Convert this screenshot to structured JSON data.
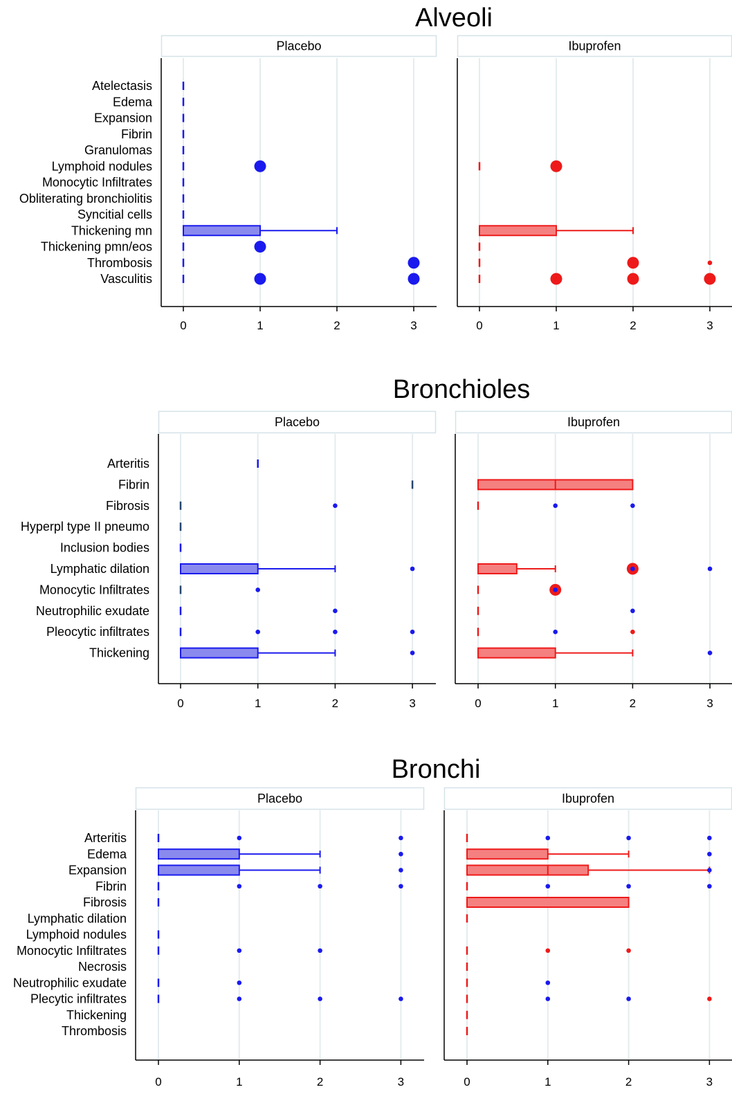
{
  "colors": {
    "placebo": "#1a1aee",
    "placebo_fill": "#8a8aee",
    "ibuprofen": "#ee1a1a",
    "ibuprofen_fill": "#f58080",
    "grid": "#e4ecee",
    "strip_border": "#d5e2e8"
  },
  "chart_data": [
    {
      "type": "box",
      "title": "Alveoli",
      "xticks": [
        0,
        1,
        2,
        3
      ],
      "categories": [
        "Atelectasis",
        "Edema",
        "Expansion",
        "Fibrin",
        "Granulomas",
        "Lymphoid nodules",
        "Monocytic Infiltrates",
        "Obliterating bronchiolitis",
        "Syncitial cells",
        "Thickening mn",
        "Thickening pmn/eos",
        "Thrombosis",
        "Vasculitis"
      ],
      "panels": [
        {
          "name": "Placebo",
          "group": "placebo",
          "boxes": [
            {
              "category": "Atelectasis",
              "median": 0
            },
            {
              "category": "Edema",
              "median": 0
            },
            {
              "category": "Expansion",
              "median": 0
            },
            {
              "category": "Fibrin",
              "median": 0
            },
            {
              "category": "Granulomas",
              "median": 0
            },
            {
              "category": "Lymphoid nodules",
              "median": 0
            },
            {
              "category": "Monocytic Infiltrates",
              "median": 0
            },
            {
              "category": "Obliterating bronchiolitis",
              "median": 0
            },
            {
              "category": "Syncitial cells",
              "median": 0
            },
            {
              "category": "Thickening mn",
              "q1": 0,
              "median": 0,
              "q3": 1,
              "whisker_high": 2
            },
            {
              "category": "Thickening pmn/eos",
              "median": 0
            },
            {
              "category": "Thrombosis",
              "median": 0
            },
            {
              "category": "Vasculitis",
              "median": 0
            }
          ],
          "outliers": [
            {
              "category": "Lymphoid nodules",
              "x": 1,
              "size": "large"
            },
            {
              "category": "Thickening pmn/eos",
              "x": 1,
              "size": "large"
            },
            {
              "category": "Thrombosis",
              "x": 3,
              "size": "large"
            },
            {
              "category": "Vasculitis",
              "x": 1,
              "size": "large"
            },
            {
              "category": "Vasculitis",
              "x": 3,
              "size": "large"
            }
          ]
        },
        {
          "name": "Ibuprofen",
          "group": "ibuprofen",
          "boxes": [
            {
              "category": "Lymphoid nodules",
              "median": 0
            },
            {
              "category": "Thickening mn",
              "q1": 0,
              "median": 0,
              "q3": 1,
              "whisker_high": 2
            },
            {
              "category": "Thickening pmn/eos",
              "median": 0
            },
            {
              "category": "Thrombosis",
              "median": 0
            },
            {
              "category": "Vasculitis",
              "median": 0
            }
          ],
          "outliers": [
            {
              "category": "Lymphoid nodules",
              "x": 1,
              "size": "large"
            },
            {
              "category": "Thrombosis",
              "x": 2,
              "size": "large"
            },
            {
              "category": "Thrombosis",
              "x": 3,
              "size": "small"
            },
            {
              "category": "Vasculitis",
              "x": 1,
              "size": "large"
            },
            {
              "category": "Vasculitis",
              "x": 2,
              "size": "large"
            },
            {
              "category": "Vasculitis",
              "x": 3,
              "size": "large"
            }
          ]
        }
      ]
    },
    {
      "type": "box",
      "title": "Bronchioles",
      "xticks": [
        0,
        1,
        2,
        3
      ],
      "categories": [
        "Arteritis",
        "Fibrin",
        "Fibrosis",
        "Hyperpl type II pneumo",
        "Inclusion bodies",
        "Lymphatic dilation",
        "Monocytic Infiltrates",
        "Neutrophilic exudate",
        "Pleocytic infiltrates",
        "Thickening"
      ],
      "panels": [
        {
          "name": "Placebo",
          "group": "placebo",
          "boxes": [
            {
              "category": "Arteritis",
              "median": 1
            },
            {
              "category": "Fibrin",
              "median": 3,
              "color": "#24456e"
            },
            {
              "category": "Fibrosis",
              "median": 0,
              "color": "#24456e"
            },
            {
              "category": "Hyperpl type II pneumo",
              "median": 0,
              "color": "#24456e"
            },
            {
              "category": "Inclusion bodies",
              "median": 0
            },
            {
              "category": "Lymphatic dilation",
              "q1": 0,
              "median": 0,
              "q3": 1,
              "whisker_high": 2
            },
            {
              "category": "Monocytic Infiltrates",
              "median": 0,
              "color": "#24456e"
            },
            {
              "category": "Neutrophilic exudate",
              "median": 0
            },
            {
              "category": "Pleocytic infiltrates",
              "median": 0
            },
            {
              "category": "Thickening",
              "q1": 0,
              "median": 0,
              "q3": 1,
              "whisker_high": 2
            }
          ],
          "outliers": [
            {
              "category": "Fibrosis",
              "x": 2,
              "size": "small"
            },
            {
              "category": "Lymphatic dilation",
              "x": 3,
              "size": "small"
            },
            {
              "category": "Monocytic Infiltrates",
              "x": 1,
              "size": "small"
            },
            {
              "category": "Neutrophilic exudate",
              "x": 2,
              "size": "small"
            },
            {
              "category": "Pleocytic infiltrates",
              "x": 1,
              "size": "small"
            },
            {
              "category": "Pleocytic infiltrates",
              "x": 2,
              "size": "small"
            },
            {
              "category": "Pleocytic infiltrates",
              "x": 3,
              "size": "small"
            },
            {
              "category": "Thickening",
              "x": 3,
              "size": "small"
            }
          ]
        },
        {
          "name": "Ibuprofen",
          "group": "ibuprofen",
          "boxes": [
            {
              "category": "Fibrin",
              "q1": 0,
              "median": 1,
              "q3": 2
            },
            {
              "category": "Fibrosis",
              "median": 0
            },
            {
              "category": "Lymphatic dilation",
              "q1": 0,
              "median": 0,
              "q3": 0.5,
              "whisker_high": 1
            },
            {
              "category": "Monocytic Infiltrates",
              "median": 0
            },
            {
              "category": "Neutrophilic exudate",
              "median": 0
            },
            {
              "category": "Pleocytic infiltrates",
              "median": 0
            },
            {
              "category": "Thickening",
              "q1": 0,
              "median": 0,
              "q3": 1,
              "whisker_high": 2
            }
          ],
          "outliers": [
            {
              "category": "Fibrosis",
              "x": 1,
              "size": "small",
              "color": "placebo"
            },
            {
              "category": "Fibrosis",
              "x": 2,
              "size": "small",
              "color": "placebo"
            },
            {
              "category": "Lymphatic dilation",
              "x": 2,
              "size": "large"
            },
            {
              "category": "Lymphatic dilation",
              "x": 2,
              "size": "small",
              "color": "placebo"
            },
            {
              "category": "Lymphatic dilation",
              "x": 3,
              "size": "small",
              "color": "placebo"
            },
            {
              "category": "Monocytic Infiltrates",
              "x": 1,
              "size": "large"
            },
            {
              "category": "Monocytic Infiltrates",
              "x": 1,
              "size": "small",
              "color": "placebo"
            },
            {
              "category": "Neutrophilic exudate",
              "x": 2,
              "size": "small",
              "color": "placebo"
            },
            {
              "category": "Pleocytic infiltrates",
              "x": 1,
              "size": "small",
              "color": "placebo"
            },
            {
              "category": "Pleocytic infiltrates",
              "x": 2,
              "size": "small"
            },
            {
              "category": "Thickening",
              "x": 3,
              "size": "small",
              "color": "placebo"
            }
          ]
        }
      ]
    },
    {
      "type": "box",
      "title": "Bronchi",
      "xticks": [
        0,
        1,
        2,
        3
      ],
      "categories": [
        "Arteritis",
        "Edema",
        "Expansion",
        "Fibrin",
        "Fibrosis",
        "Lymphatic dilation",
        "Lymphoid nodules",
        "Monocytic Infiltrates",
        "Necrosis",
        "Neutrophilic exudate",
        "Plecytic infiltrates",
        "Thickening",
        "Thrombosis"
      ],
      "panels": [
        {
          "name": "Placebo",
          "group": "placebo",
          "boxes": [
            {
              "category": "Arteritis",
              "median": 0
            },
            {
              "category": "Edema",
              "q1": 0,
              "median": 0,
              "q3": 1,
              "whisker_high": 2
            },
            {
              "category": "Expansion",
              "q1": 0,
              "median": 0,
              "q3": 1,
              "whisker_high": 2
            },
            {
              "category": "Fibrin",
              "median": 0
            },
            {
              "category": "Fibrosis",
              "median": 0
            },
            {
              "category": "Lymphoid nodules",
              "median": 0
            },
            {
              "category": "Monocytic Infiltrates",
              "median": 0
            },
            {
              "category": "Neutrophilic exudate",
              "median": 0
            },
            {
              "category": "Plecytic infiltrates",
              "median": 0
            }
          ],
          "outliers": [
            {
              "category": "Arteritis",
              "x": 1,
              "size": "small"
            },
            {
              "category": "Arteritis",
              "x": 3,
              "size": "small"
            },
            {
              "category": "Edema",
              "x": 3,
              "size": "small"
            },
            {
              "category": "Expansion",
              "x": 3,
              "size": "small"
            },
            {
              "category": "Fibrin",
              "x": 1,
              "size": "small"
            },
            {
              "category": "Fibrin",
              "x": 2,
              "size": "small"
            },
            {
              "category": "Fibrin",
              "x": 3,
              "size": "small"
            },
            {
              "category": "Monocytic Infiltrates",
              "x": 1,
              "size": "small"
            },
            {
              "category": "Monocytic Infiltrates",
              "x": 2,
              "size": "small"
            },
            {
              "category": "Neutrophilic exudate",
              "x": 1,
              "size": "small"
            },
            {
              "category": "Plecytic infiltrates",
              "x": 1,
              "size": "small"
            },
            {
              "category": "Plecytic infiltrates",
              "x": 2,
              "size": "small"
            },
            {
              "category": "Plecytic infiltrates",
              "x": 3,
              "size": "small"
            }
          ]
        },
        {
          "name": "Ibuprofen",
          "group": "ibuprofen",
          "boxes": [
            {
              "category": "Arteritis",
              "median": 0
            },
            {
              "category": "Edema",
              "q1": 0,
              "median": 0,
              "q3": 1,
              "whisker_high": 2
            },
            {
              "category": "Expansion",
              "q1": 0,
              "median": 1,
              "q3": 1.5,
              "whisker_high": 3
            },
            {
              "category": "Fibrin",
              "median": 0
            },
            {
              "category": "Fibrosis",
              "q1": 0,
              "median": 0,
              "q3": 2
            },
            {
              "category": "Lymphatic dilation",
              "median": 0
            },
            {
              "category": "Monocytic Infiltrates",
              "median": 0
            },
            {
              "category": "Necrosis",
              "median": 0
            },
            {
              "category": "Neutrophilic exudate",
              "median": 0
            },
            {
              "category": "Plecytic infiltrates",
              "median": 0
            },
            {
              "category": "Thickening",
              "median": 0
            },
            {
              "category": "Thrombosis",
              "median": 0
            }
          ],
          "outliers": [
            {
              "category": "Arteritis",
              "x": 1,
              "size": "small",
              "color": "placebo"
            },
            {
              "category": "Arteritis",
              "x": 2,
              "size": "small",
              "color": "placebo"
            },
            {
              "category": "Arteritis",
              "x": 3,
              "size": "small",
              "color": "placebo"
            },
            {
              "category": "Edema",
              "x": 3,
              "size": "small",
              "color": "placebo"
            },
            {
              "category": "Expansion",
              "x": 3,
              "size": "small",
              "color": "placebo"
            },
            {
              "category": "Fibrin",
              "x": 1,
              "size": "small",
              "color": "placebo"
            },
            {
              "category": "Fibrin",
              "x": 2,
              "size": "small",
              "color": "placebo"
            },
            {
              "category": "Fibrin",
              "x": 3,
              "size": "small",
              "color": "placebo"
            },
            {
              "category": "Monocytic Infiltrates",
              "x": 1,
              "size": "small"
            },
            {
              "category": "Monocytic Infiltrates",
              "x": 2,
              "size": "small"
            },
            {
              "category": "Neutrophilic exudate",
              "x": 1,
              "size": "small",
              "color": "placebo"
            },
            {
              "category": "Plecytic infiltrates",
              "x": 1,
              "size": "small",
              "color": "placebo"
            },
            {
              "category": "Plecytic infiltrates",
              "x": 2,
              "size": "small",
              "color": "placebo"
            },
            {
              "category": "Plecytic infiltrates",
              "x": 3,
              "size": "small"
            }
          ]
        }
      ]
    }
  ]
}
